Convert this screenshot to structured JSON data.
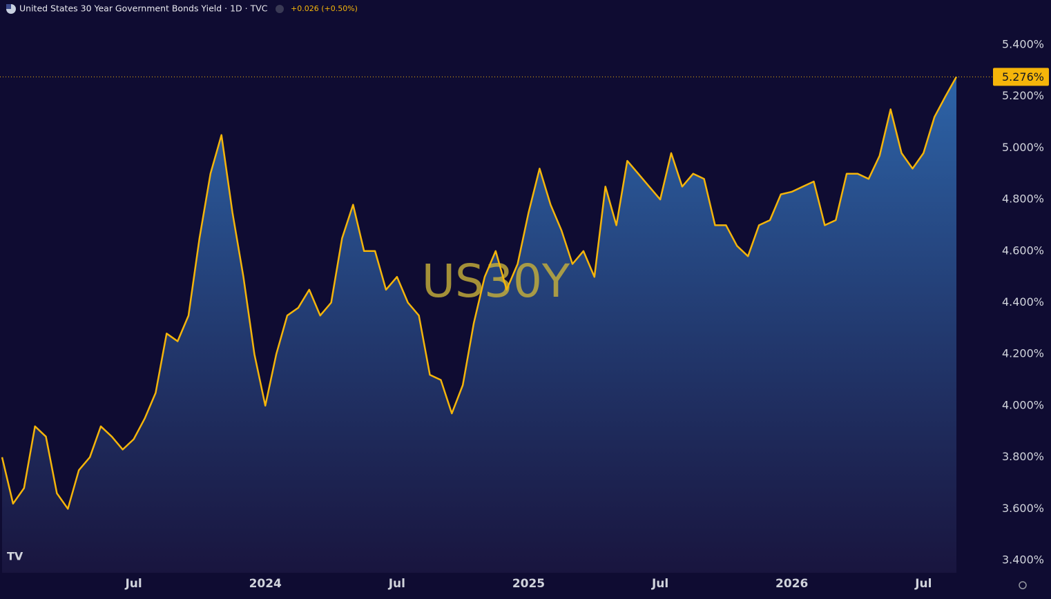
{
  "chart_data": {
    "type": "area",
    "title": "United States 30 Year Government Bonds Yield · 1D · TVC",
    "change_label": "+0.026 (+0.50%)",
    "watermark": "US30Y",
    "categories": [
      null,
      null,
      null,
      null,
      null,
      null,
      null,
      null,
      null,
      null,
      null,
      null,
      "Jul",
      null,
      null,
      null,
      null,
      null,
      null,
      null,
      null,
      null,
      null,
      null,
      "2024",
      null,
      null,
      null,
      null,
      null,
      null,
      null,
      null,
      null,
      null,
      null,
      "Jul",
      null,
      null,
      null,
      null,
      null,
      null,
      null,
      null,
      null,
      null,
      null,
      "2025",
      null,
      null,
      null,
      null,
      null,
      null,
      null,
      null,
      null,
      null,
      null,
      "Jul",
      null,
      null,
      null,
      null,
      null,
      null,
      null,
      null,
      null,
      null,
      null,
      "2026",
      null,
      null,
      null,
      null,
      null,
      null,
      null,
      null,
      null,
      null,
      null,
      "Jul",
      null,
      null,
      null
    ],
    "series": [
      {
        "name": "US30Y",
        "color": "#f5b50a",
        "fill_color": "#2d64a8",
        "values": [
          3.8,
          3.62,
          3.68,
          3.92,
          3.88,
          3.66,
          3.6,
          3.75,
          3.8,
          3.92,
          3.88,
          3.83,
          3.87,
          3.95,
          4.05,
          4.28,
          4.25,
          4.35,
          4.65,
          4.9,
          5.05,
          4.75,
          4.5,
          4.2,
          4.0,
          4.2,
          4.35,
          4.38,
          4.45,
          4.35,
          4.4,
          4.65,
          4.78,
          4.6,
          4.6,
          4.45,
          4.5,
          4.4,
          4.35,
          4.12,
          4.1,
          3.97,
          4.08,
          4.32,
          4.5,
          4.6,
          4.45,
          4.55,
          4.75,
          4.92,
          4.78,
          4.68,
          4.55,
          4.6,
          4.5,
          4.85,
          4.7,
          4.95,
          4.9,
          4.85,
          4.8,
          4.98,
          4.85,
          4.9,
          4.88,
          4.7,
          4.7,
          4.62,
          4.58,
          4.7,
          4.72,
          4.82,
          4.83,
          4.85,
          4.87,
          4.7,
          4.72,
          4.9,
          4.9,
          4.88,
          4.97,
          5.15,
          4.98,
          4.92,
          4.98,
          5.12,
          5.2,
          5.276
        ]
      }
    ],
    "last_value": {
      "value": 5.276,
      "label": "5.276%"
    },
    "ylim": [
      3.35,
      5.5
    ],
    "yticks": [
      {
        "value": 3.4,
        "label": "3.400%"
      },
      {
        "value": 3.6,
        "label": "3.600%"
      },
      {
        "value": 3.8,
        "label": "3.800%"
      },
      {
        "value": 4.0,
        "label": "4.000%"
      },
      {
        "value": 4.2,
        "label": "4.200%"
      },
      {
        "value": 4.4,
        "label": "4.400%"
      },
      {
        "value": 4.6,
        "label": "4.600%"
      },
      {
        "value": 4.8,
        "label": "4.800%"
      },
      {
        "value": 5.0,
        "label": "5.000%"
      },
      {
        "value": 5.2,
        "label": "5.200%"
      },
      {
        "value": 5.4,
        "label": "5.400%"
      }
    ],
    "grid": false
  }
}
